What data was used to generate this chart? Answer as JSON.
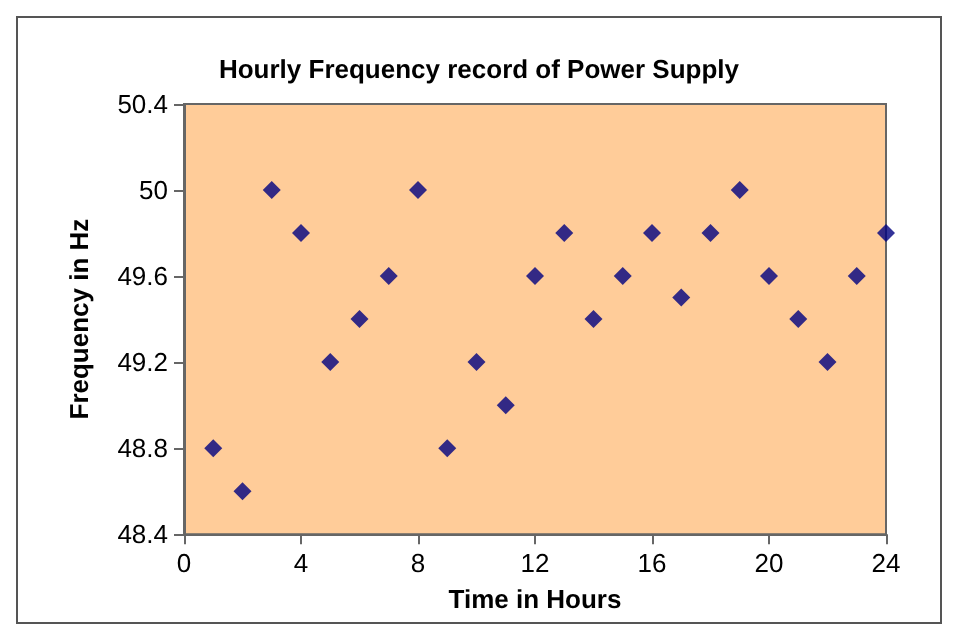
{
  "chart_data": {
    "type": "scatter",
    "title": "Hourly Frequency record of Power Supply",
    "xlabel": "Time in Hours",
    "ylabel": "Frequency in Hz",
    "x": [
      1,
      2,
      3,
      4,
      5,
      6,
      7,
      8,
      9,
      10,
      11,
      12,
      13,
      14,
      15,
      16,
      17,
      18,
      19,
      20,
      21,
      22,
      23,
      24
    ],
    "series": [
      {
        "color": "#000080",
        "values": [
          48.8,
          48.6,
          50,
          49.8,
          49.2,
          49.4,
          49.6,
          50,
          48.8,
          49.2,
          49.0,
          49.6,
          49.8,
          49.4,
          49.6,
          49.8,
          49.5,
          49.8,
          50,
          49.6,
          49.4,
          49.2,
          49.6,
          49.8
        ]
      }
    ],
    "xlim": [
      0,
      24
    ],
    "xticks": [
      0,
      4,
      8,
      12,
      16,
      20,
      24
    ],
    "ylim": [
      48.4,
      50.4
    ],
    "yticks": [
      48.4,
      48.8,
      49.2,
      49.6,
      50,
      50.4
    ],
    "grid": false,
    "marker": "diamond"
  }
}
